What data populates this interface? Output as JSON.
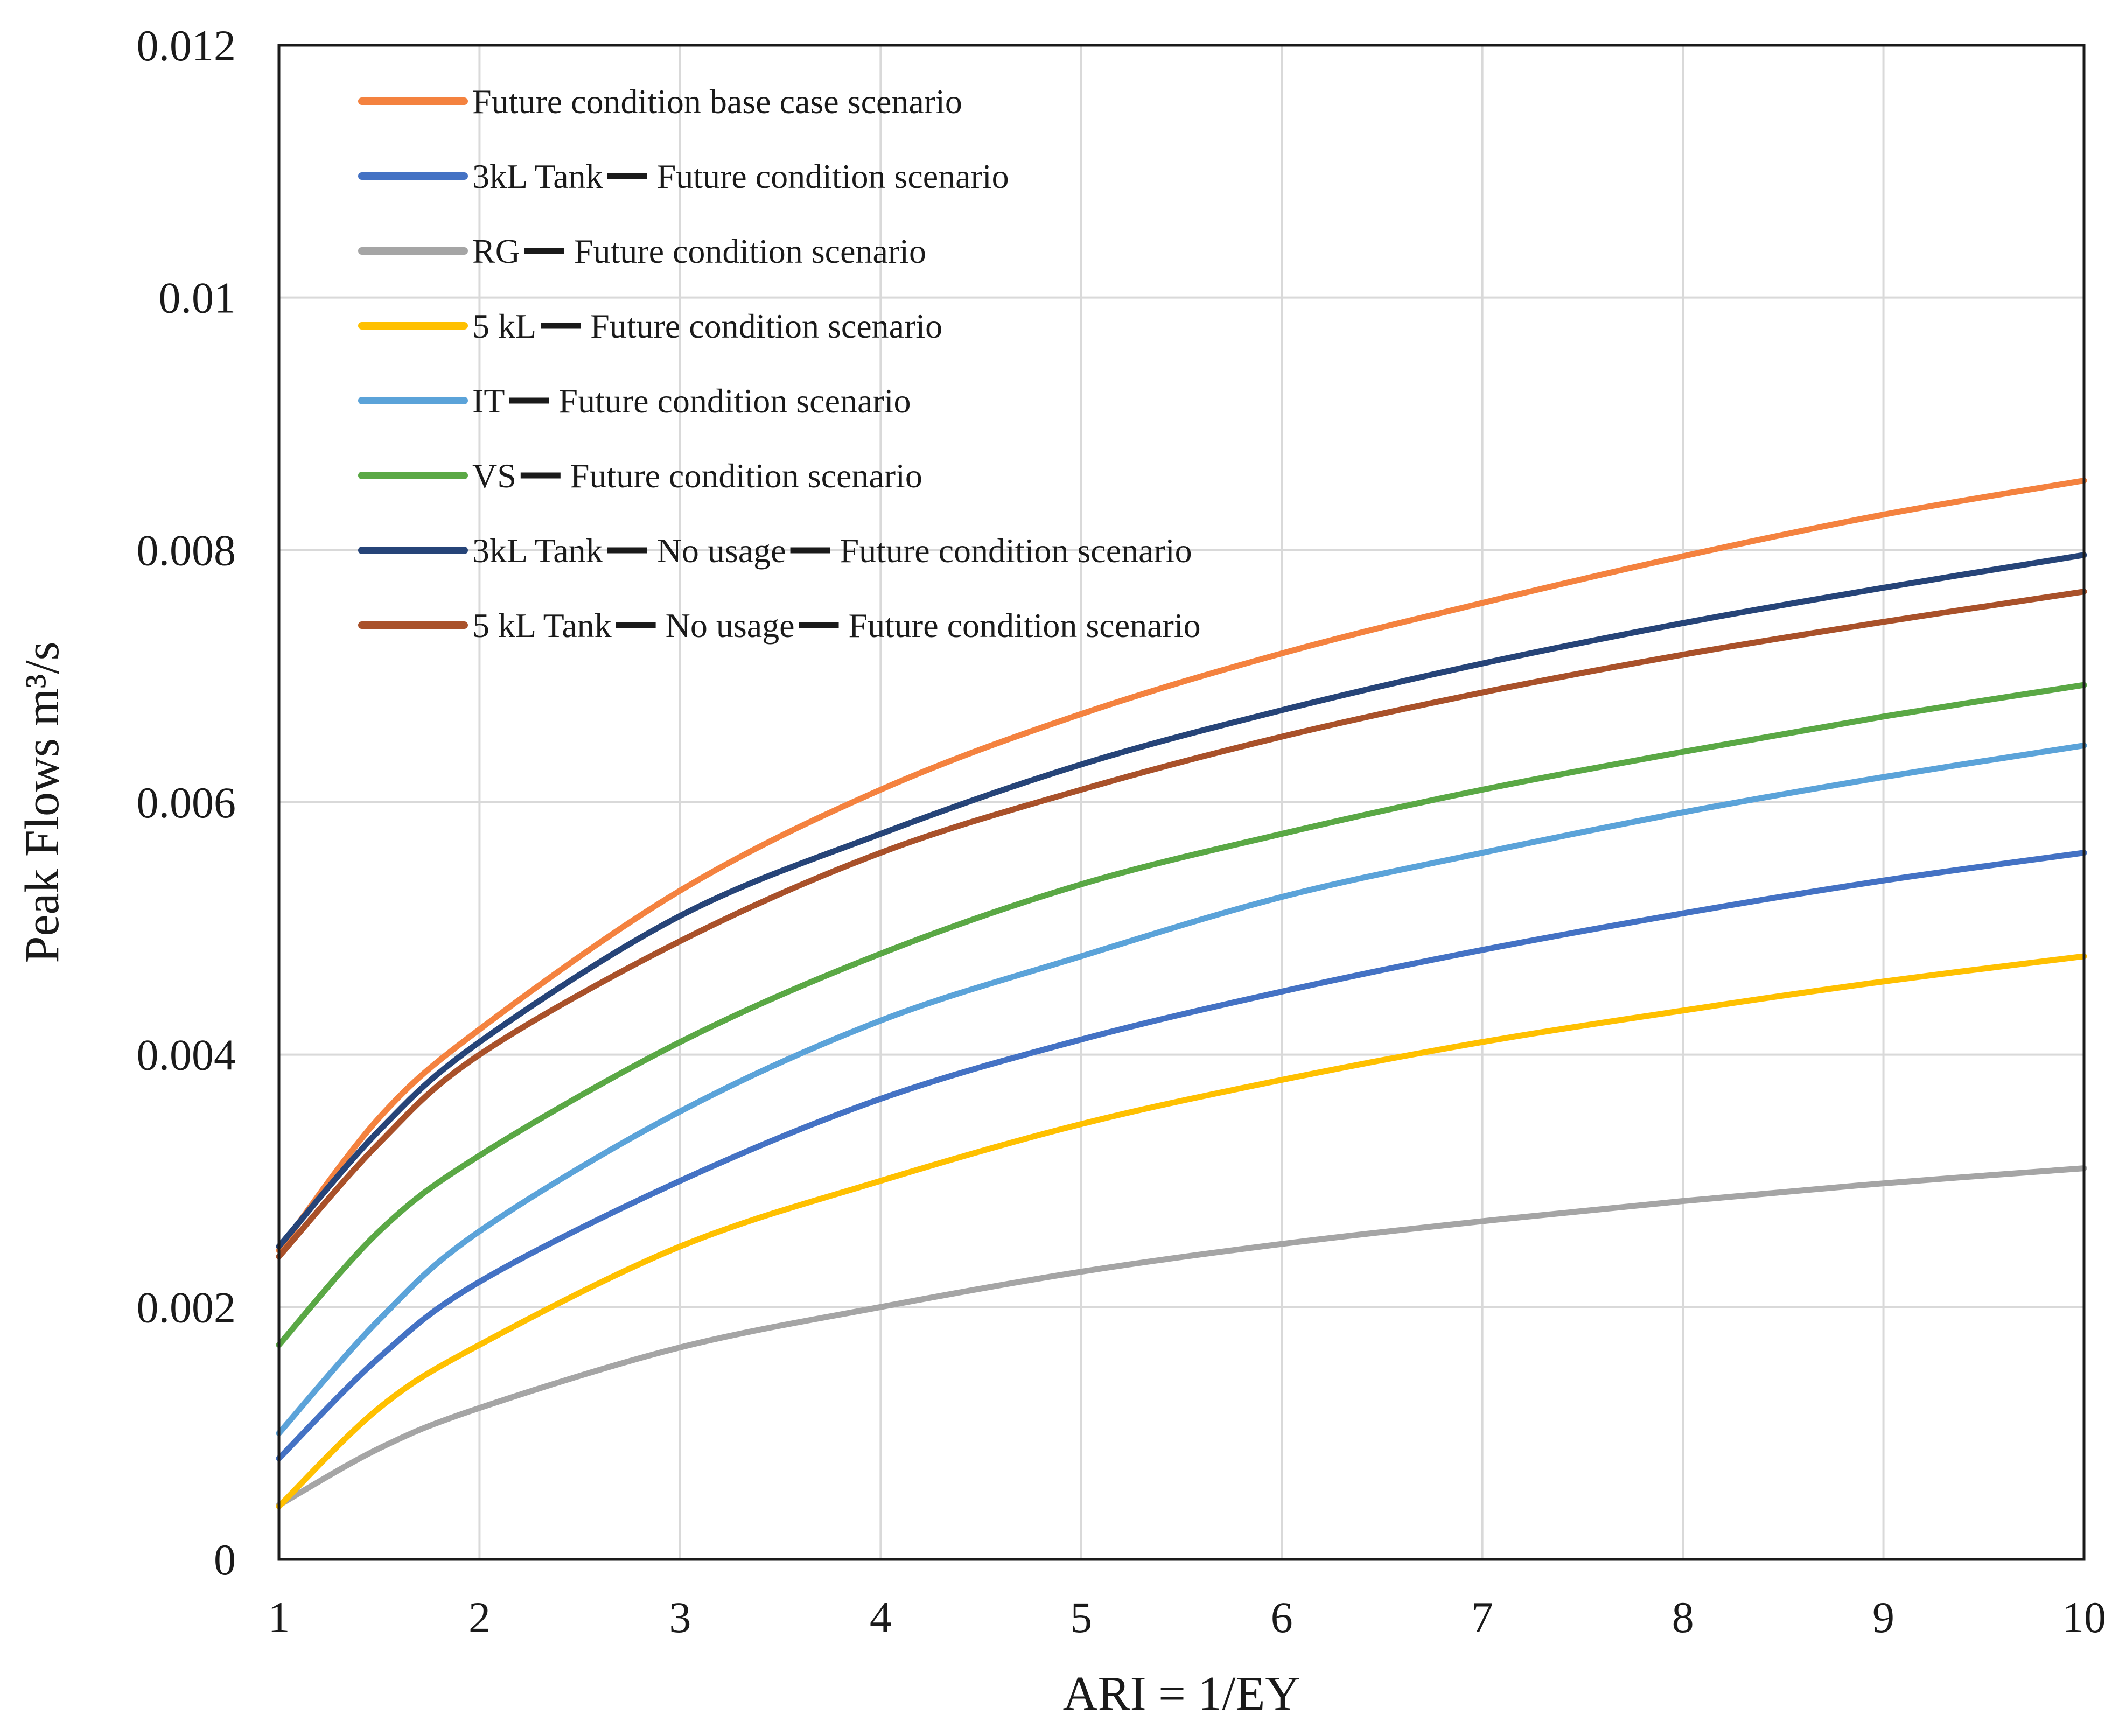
{
  "chart_data": {
    "type": "line",
    "title": "",
    "xlabel": "ARI = 1/EY",
    "ylabel": "Peak Flows m³/s",
    "xlim": [
      1,
      10
    ],
    "ylim": [
      0,
      0.012
    ],
    "grid": true,
    "legend_position": "top-left",
    "x_ticks": [
      "1",
      "2",
      "3",
      "4",
      "5",
      "6",
      "7",
      "8",
      "9",
      "10"
    ],
    "y_ticks": [
      "0",
      "0.002",
      "0.004",
      "0.006",
      "0.008",
      "0.01",
      "0.012"
    ],
    "x": [
      1,
      1.5,
      2,
      3,
      4,
      5,
      6,
      7,
      8,
      9,
      10
    ],
    "series": [
      {
        "name": "Future condition base case scenario",
        "label_parts": [
          "Future condition base case scenario"
        ],
        "color": "#F4823F",
        "values": [
          0.00245,
          0.0035,
          0.0042,
          0.0053,
          0.0061,
          0.0067,
          0.00718,
          0.00758,
          0.00795,
          0.00828,
          0.00855
        ]
      },
      {
        "name": "3kL Tank — Future condition scenario",
        "label_parts": [
          "3kL Tank",
          "Future condition scenario"
        ],
        "color": "#4472C4",
        "values": [
          0.0008,
          0.0016,
          0.0022,
          0.003,
          0.00365,
          0.00412,
          0.0045,
          0.00483,
          0.00512,
          0.00538,
          0.0056
        ]
      },
      {
        "name": "RG — Future condition scenario",
        "label_parts": [
          "RG",
          "Future condition scenario"
        ],
        "color": "#A5A5A5",
        "values": [
          0.00043,
          0.00088,
          0.0012,
          0.00168,
          0.002,
          0.00228,
          0.0025,
          0.00268,
          0.00284,
          0.00298,
          0.0031
        ]
      },
      {
        "name": "5 kL — Future condition scenario",
        "label_parts": [
          "5 kL",
          "Future condition scenario"
        ],
        "color": "#FFC000",
        "values": [
          0.00042,
          0.0012,
          0.0017,
          0.00248,
          0.003,
          0.00345,
          0.0038,
          0.0041,
          0.00435,
          0.00458,
          0.00478
        ]
      },
      {
        "name": "IT — Future condition scenario",
        "label_parts": [
          "IT",
          "Future condition scenario"
        ],
        "color": "#5BA3D9",
        "values": [
          0.001,
          0.0019,
          0.0026,
          0.00355,
          0.00427,
          0.00478,
          0.00525,
          0.0056,
          0.00592,
          0.0062,
          0.00645
        ]
      },
      {
        "name": "VS — Future condition scenario",
        "label_parts": [
          "VS",
          "Future condition scenario"
        ],
        "color": "#5AA845",
        "values": [
          0.0017,
          0.0026,
          0.0032,
          0.0041,
          0.0048,
          0.00535,
          0.00575,
          0.0061,
          0.0064,
          0.00668,
          0.00693
        ]
      },
      {
        "name": "3kL Tank — No usage — Future condition scenario",
        "label_parts": [
          "3kL Tank",
          "No usage",
          "Future condition scenario"
        ],
        "color": "#264478",
        "values": [
          0.00248,
          0.0034,
          0.0041,
          0.0051,
          0.00575,
          0.0063,
          0.00673,
          0.0071,
          0.00742,
          0.0077,
          0.00796
        ]
      },
      {
        "name": "5 kL Tank — No usage — Future condition scenario",
        "label_parts": [
          "5 kL Tank",
          "No usage",
          "Future condition scenario"
        ],
        "color": "#A9512A",
        "values": [
          0.0024,
          0.0033,
          0.004,
          0.0049,
          0.0056,
          0.0061,
          0.00652,
          0.00687,
          0.00717,
          0.00743,
          0.00767
        ]
      }
    ]
  }
}
